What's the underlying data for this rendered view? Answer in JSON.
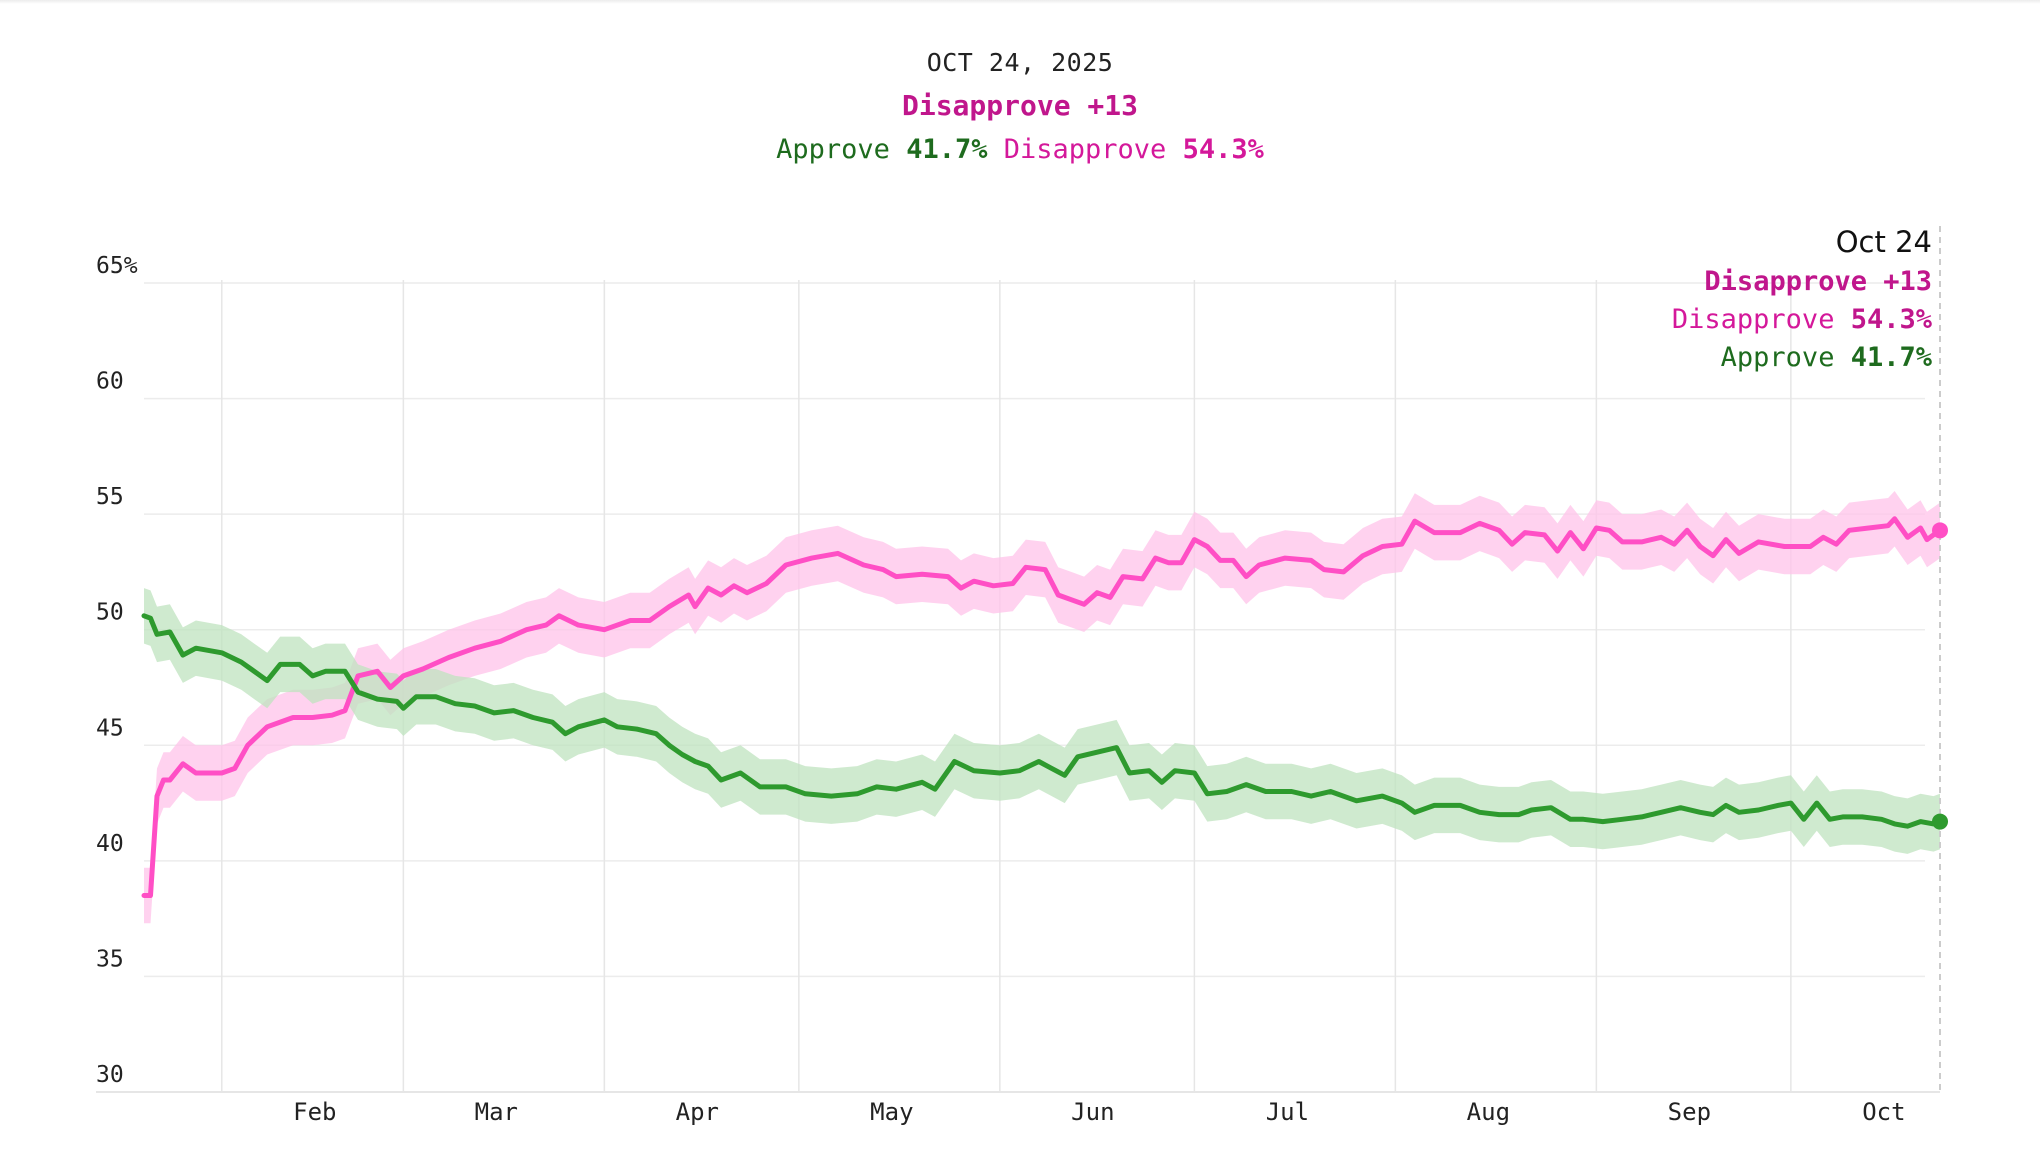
{
  "header": {
    "date": "OCT 24, 2025",
    "net_label": "Disapprove +13",
    "approve_label": "Approve",
    "approve_value": "41.7%",
    "disapprove_label": "Disapprove",
    "disapprove_value": "54.3%"
  },
  "tooltip": {
    "date": "Oct 24",
    "net_label": "Disapprove +13",
    "disapprove_label": "Disapprove",
    "disapprove_value": "54.3%",
    "approve_label": "Approve",
    "approve_value": "41.7%"
  },
  "colors": {
    "approve": "#2e9a2e",
    "approve_band": "#bfe3bf",
    "disapprove": "#ff4fc5",
    "disapprove_band": "#ffc3ea",
    "approve_text": "#1e6b1e",
    "disapprove_text": "#d4189a"
  },
  "chart_data": {
    "type": "line",
    "title": "",
    "xlabel": "",
    "ylabel": "",
    "ylim": [
      30,
      65
    ],
    "y_ticks": [
      {
        "value": 65,
        "label": "65%"
      },
      {
        "value": 60,
        "label": "60"
      },
      {
        "value": 55,
        "label": "55"
      },
      {
        "value": 50,
        "label": "50"
      },
      {
        "value": 45,
        "label": "45"
      },
      {
        "value": 40,
        "label": "40"
      },
      {
        "value": 35,
        "label": "35"
      },
      {
        "value": 30,
        "label": "30"
      }
    ],
    "x_range": [
      "2025-01-20",
      "2025-10-24"
    ],
    "x_ticks": [
      {
        "date": "2025-02-01",
        "label": "Feb"
      },
      {
        "date": "2025-03-01",
        "label": "Mar"
      },
      {
        "date": "2025-04-01",
        "label": "Apr"
      },
      {
        "date": "2025-05-01",
        "label": "May"
      },
      {
        "date": "2025-06-01",
        "label": "Jun"
      },
      {
        "date": "2025-07-01",
        "label": "Jul"
      },
      {
        "date": "2025-08-01",
        "label": "Aug"
      },
      {
        "date": "2025-09-01",
        "label": "Sep"
      },
      {
        "date": "2025-10-01",
        "label": "Oct"
      }
    ],
    "grid": true,
    "series": [
      {
        "name": "Disapprove",
        "band": 1.2,
        "points": [
          [
            "2025-01-20",
            38.5
          ],
          [
            "2025-01-21",
            38.5
          ],
          [
            "2025-01-22",
            42.8
          ],
          [
            "2025-01-23",
            43.5
          ],
          [
            "2025-01-24",
            43.5
          ],
          [
            "2025-01-26",
            44.2
          ],
          [
            "2025-01-28",
            43.8
          ],
          [
            "2025-02-01",
            43.8
          ],
          [
            "2025-02-03",
            44.0
          ],
          [
            "2025-02-05",
            45.0
          ],
          [
            "2025-02-08",
            45.8
          ],
          [
            "2025-02-12",
            46.2
          ],
          [
            "2025-02-15",
            46.2
          ],
          [
            "2025-02-18",
            46.3
          ],
          [
            "2025-02-20",
            46.5
          ],
          [
            "2025-02-22",
            48.0
          ],
          [
            "2025-02-25",
            48.2
          ],
          [
            "2025-02-27",
            47.5
          ],
          [
            "2025-03-01",
            48.0
          ],
          [
            "2025-03-04",
            48.3
          ],
          [
            "2025-03-08",
            48.8
          ],
          [
            "2025-03-12",
            49.2
          ],
          [
            "2025-03-16",
            49.5
          ],
          [
            "2025-03-20",
            50.0
          ],
          [
            "2025-03-23",
            50.2
          ],
          [
            "2025-03-25",
            50.6
          ],
          [
            "2025-03-28",
            50.2
          ],
          [
            "2025-04-01",
            50.0
          ],
          [
            "2025-04-05",
            50.4
          ],
          [
            "2025-04-08",
            50.4
          ],
          [
            "2025-04-11",
            51.0
          ],
          [
            "2025-04-14",
            51.5
          ],
          [
            "2025-04-15",
            51.0
          ],
          [
            "2025-04-17",
            51.8
          ],
          [
            "2025-04-19",
            51.5
          ],
          [
            "2025-04-21",
            51.9
          ],
          [
            "2025-04-23",
            51.6
          ],
          [
            "2025-04-26",
            52.0
          ],
          [
            "2025-04-29",
            52.8
          ],
          [
            "2025-05-03",
            53.1
          ],
          [
            "2025-05-07",
            53.3
          ],
          [
            "2025-05-11",
            52.8
          ],
          [
            "2025-05-14",
            52.6
          ],
          [
            "2025-05-16",
            52.3
          ],
          [
            "2025-05-20",
            52.4
          ],
          [
            "2025-05-24",
            52.3
          ],
          [
            "2025-05-26",
            51.8
          ],
          [
            "2025-05-28",
            52.1
          ],
          [
            "2025-05-31",
            51.9
          ],
          [
            "2025-06-03",
            52.0
          ],
          [
            "2025-06-05",
            52.7
          ],
          [
            "2025-06-08",
            52.6
          ],
          [
            "2025-06-10",
            51.5
          ],
          [
            "2025-06-12",
            51.3
          ],
          [
            "2025-06-14",
            51.1
          ],
          [
            "2025-06-16",
            51.6
          ],
          [
            "2025-06-18",
            51.4
          ],
          [
            "2025-06-20",
            52.3
          ],
          [
            "2025-06-23",
            52.2
          ],
          [
            "2025-06-25",
            53.1
          ],
          [
            "2025-06-27",
            52.9
          ],
          [
            "2025-06-29",
            52.9
          ],
          [
            "2025-07-01",
            53.9
          ],
          [
            "2025-07-03",
            53.6
          ],
          [
            "2025-07-05",
            53.0
          ],
          [
            "2025-07-07",
            53.0
          ],
          [
            "2025-07-09",
            52.3
          ],
          [
            "2025-07-11",
            52.8
          ],
          [
            "2025-07-15",
            53.1
          ],
          [
            "2025-07-19",
            53.0
          ],
          [
            "2025-07-21",
            52.6
          ],
          [
            "2025-07-24",
            52.5
          ],
          [
            "2025-07-27",
            53.2
          ],
          [
            "2025-07-30",
            53.6
          ],
          [
            "2025-08-02",
            53.7
          ],
          [
            "2025-08-04",
            54.7
          ],
          [
            "2025-08-07",
            54.2
          ],
          [
            "2025-08-11",
            54.2
          ],
          [
            "2025-08-14",
            54.6
          ],
          [
            "2025-08-17",
            54.3
          ],
          [
            "2025-08-19",
            53.7
          ],
          [
            "2025-08-21",
            54.2
          ],
          [
            "2025-08-24",
            54.1
          ],
          [
            "2025-08-26",
            53.4
          ],
          [
            "2025-08-28",
            54.2
          ],
          [
            "2025-08-30",
            53.5
          ],
          [
            "2025-09-01",
            54.4
          ],
          [
            "2025-09-03",
            54.3
          ],
          [
            "2025-09-05",
            53.8
          ],
          [
            "2025-09-08",
            53.8
          ],
          [
            "2025-09-11",
            54.0
          ],
          [
            "2025-09-13",
            53.7
          ],
          [
            "2025-09-15",
            54.3
          ],
          [
            "2025-09-17",
            53.6
          ],
          [
            "2025-09-19",
            53.2
          ],
          [
            "2025-09-21",
            53.9
          ],
          [
            "2025-09-23",
            53.3
          ],
          [
            "2025-09-26",
            53.8
          ],
          [
            "2025-09-30",
            53.6
          ],
          [
            "2025-10-04",
            53.6
          ],
          [
            "2025-10-06",
            54.0
          ],
          [
            "2025-10-08",
            53.7
          ],
          [
            "2025-10-10",
            54.3
          ],
          [
            "2025-10-13",
            54.4
          ],
          [
            "2025-10-16",
            54.5
          ],
          [
            "2025-10-17",
            54.8
          ],
          [
            "2025-10-19",
            54.0
          ],
          [
            "2025-10-21",
            54.4
          ],
          [
            "2025-10-22",
            53.9
          ],
          [
            "2025-10-23",
            54.1
          ],
          [
            "2025-10-24",
            54.3
          ]
        ]
      },
      {
        "name": "Approve",
        "band": 1.2,
        "points": [
          [
            "2025-01-20",
            50.6
          ],
          [
            "2025-01-21",
            50.5
          ],
          [
            "2025-01-22",
            49.8
          ],
          [
            "2025-01-24",
            49.9
          ],
          [
            "2025-01-26",
            48.9
          ],
          [
            "2025-01-28",
            49.2
          ],
          [
            "2025-02-01",
            49.0
          ],
          [
            "2025-02-04",
            48.6
          ],
          [
            "2025-02-06",
            48.2
          ],
          [
            "2025-02-08",
            47.8
          ],
          [
            "2025-02-10",
            48.5
          ],
          [
            "2025-02-13",
            48.5
          ],
          [
            "2025-02-15",
            48.0
          ],
          [
            "2025-02-17",
            48.2
          ],
          [
            "2025-02-20",
            48.2
          ],
          [
            "2025-02-22",
            47.3
          ],
          [
            "2025-02-25",
            47.0
          ],
          [
            "2025-02-28",
            46.9
          ],
          [
            "2025-03-01",
            46.6
          ],
          [
            "2025-03-03",
            47.1
          ],
          [
            "2025-03-06",
            47.1
          ],
          [
            "2025-03-09",
            46.8
          ],
          [
            "2025-03-12",
            46.7
          ],
          [
            "2025-03-15",
            46.4
          ],
          [
            "2025-03-18",
            46.5
          ],
          [
            "2025-03-21",
            46.2
          ],
          [
            "2025-03-24",
            46.0
          ],
          [
            "2025-03-26",
            45.5
          ],
          [
            "2025-03-28",
            45.8
          ],
          [
            "2025-04-01",
            46.1
          ],
          [
            "2025-04-03",
            45.8
          ],
          [
            "2025-04-06",
            45.7
          ],
          [
            "2025-04-09",
            45.5
          ],
          [
            "2025-04-11",
            45.0
          ],
          [
            "2025-04-13",
            44.6
          ],
          [
            "2025-04-15",
            44.3
          ],
          [
            "2025-04-17",
            44.1
          ],
          [
            "2025-04-19",
            43.5
          ],
          [
            "2025-04-22",
            43.8
          ],
          [
            "2025-04-25",
            43.2
          ],
          [
            "2025-04-29",
            43.2
          ],
          [
            "2025-05-02",
            42.9
          ],
          [
            "2025-05-06",
            42.8
          ],
          [
            "2025-05-10",
            42.9
          ],
          [
            "2025-05-13",
            43.2
          ],
          [
            "2025-05-16",
            43.1
          ],
          [
            "2025-05-20",
            43.4
          ],
          [
            "2025-05-22",
            43.1
          ],
          [
            "2025-05-25",
            44.3
          ],
          [
            "2025-05-28",
            43.9
          ],
          [
            "2025-06-01",
            43.8
          ],
          [
            "2025-06-04",
            43.9
          ],
          [
            "2025-06-07",
            44.3
          ],
          [
            "2025-06-09",
            44.0
          ],
          [
            "2025-06-11",
            43.7
          ],
          [
            "2025-06-13",
            44.5
          ],
          [
            "2025-06-16",
            44.7
          ],
          [
            "2025-06-19",
            44.9
          ],
          [
            "2025-06-21",
            43.8
          ],
          [
            "2025-06-24",
            43.9
          ],
          [
            "2025-06-26",
            43.4
          ],
          [
            "2025-06-28",
            43.9
          ],
          [
            "2025-07-01",
            43.8
          ],
          [
            "2025-07-03",
            42.9
          ],
          [
            "2025-07-06",
            43.0
          ],
          [
            "2025-07-09",
            43.3
          ],
          [
            "2025-07-12",
            43.0
          ],
          [
            "2025-07-16",
            43.0
          ],
          [
            "2025-07-19",
            42.8
          ],
          [
            "2025-07-22",
            43.0
          ],
          [
            "2025-07-26",
            42.6
          ],
          [
            "2025-07-30",
            42.8
          ],
          [
            "2025-08-02",
            42.5
          ],
          [
            "2025-08-04",
            42.1
          ],
          [
            "2025-08-07",
            42.4
          ],
          [
            "2025-08-11",
            42.4
          ],
          [
            "2025-08-14",
            42.1
          ],
          [
            "2025-08-17",
            42.0
          ],
          [
            "2025-08-20",
            42.0
          ],
          [
            "2025-08-22",
            42.2
          ],
          [
            "2025-08-25",
            42.3
          ],
          [
            "2025-08-28",
            41.8
          ],
          [
            "2025-08-30",
            41.8
          ],
          [
            "2025-09-02",
            41.7
          ],
          [
            "2025-09-05",
            41.8
          ],
          [
            "2025-09-08",
            41.9
          ],
          [
            "2025-09-11",
            42.1
          ],
          [
            "2025-09-14",
            42.3
          ],
          [
            "2025-09-17",
            42.1
          ],
          [
            "2025-09-19",
            42.0
          ],
          [
            "2025-09-21",
            42.4
          ],
          [
            "2025-09-23",
            42.1
          ],
          [
            "2025-09-26",
            42.2
          ],
          [
            "2025-09-29",
            42.4
          ],
          [
            "2025-10-01",
            42.5
          ],
          [
            "2025-10-03",
            41.8
          ],
          [
            "2025-10-05",
            42.5
          ],
          [
            "2025-10-07",
            41.8
          ],
          [
            "2025-10-09",
            41.9
          ],
          [
            "2025-10-12",
            41.9
          ],
          [
            "2025-10-15",
            41.8
          ],
          [
            "2025-10-17",
            41.6
          ],
          [
            "2025-10-19",
            41.5
          ],
          [
            "2025-10-21",
            41.7
          ],
          [
            "2025-10-23",
            41.6
          ],
          [
            "2025-10-24",
            41.7
          ]
        ]
      }
    ]
  }
}
